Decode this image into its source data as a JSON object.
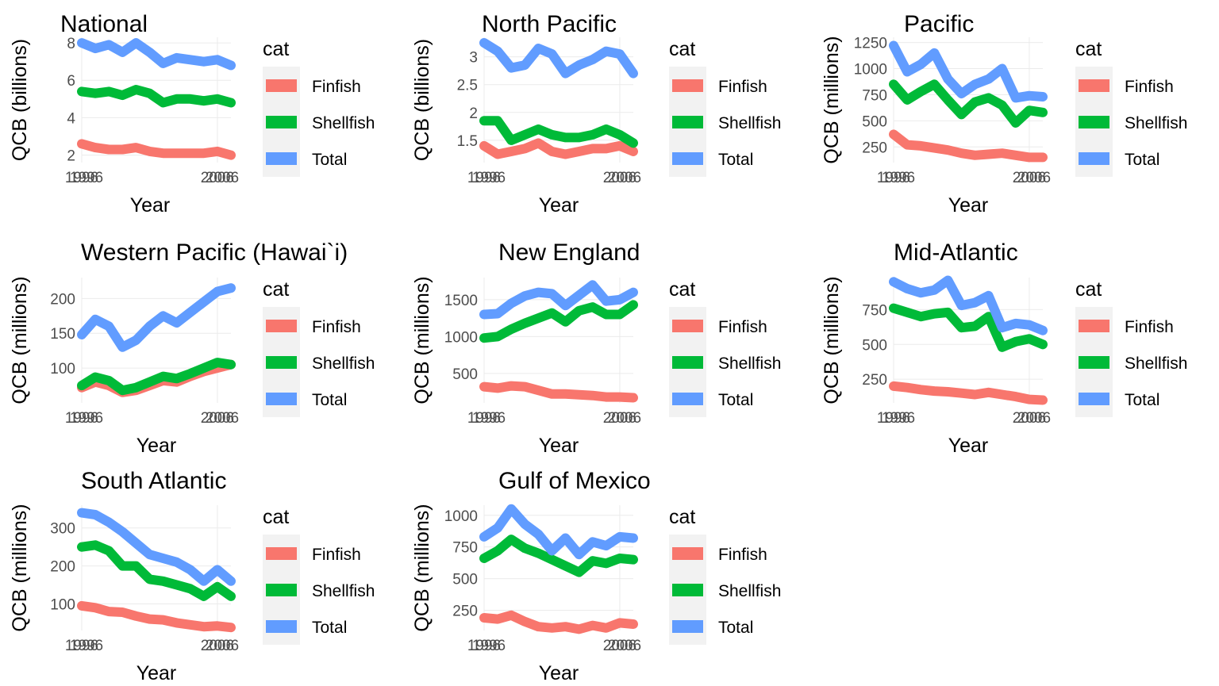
{
  "series_colors": {
    "Finfish": "#F8766D",
    "Shellfish": "#00BA38",
    "Total": "#619CFF"
  },
  "legend": {
    "title": "cat",
    "items": [
      "Finfish",
      "Shellfish",
      "Total"
    ]
  },
  "x_axis_label": "Year",
  "chart_data": [
    {
      "type": "line",
      "title": "National",
      "xlabel": "Year",
      "ylabel": "QCB (billions)",
      "x_ticks": [
        "1996",
        "2006"
      ],
      "y_ticks": [
        2,
        4,
        6,
        8
      ],
      "xlim": [
        1996,
        2007
      ],
      "ylim": [
        1.6,
        8.3
      ],
      "x": [
        1996,
        1997,
        1998,
        1999,
        2000,
        2001,
        2002,
        2003,
        2004,
        2005,
        2006,
        2007
      ],
      "series": [
        {
          "name": "Finfish",
          "values": [
            2.6,
            2.4,
            2.3,
            2.3,
            2.4,
            2.2,
            2.1,
            2.1,
            2.1,
            2.1,
            2.2,
            2.0
          ]
        },
        {
          "name": "Shellfish",
          "values": [
            5.4,
            5.3,
            5.4,
            5.2,
            5.5,
            5.3,
            4.8,
            5.0,
            5.0,
            4.9,
            5.0,
            4.8
          ]
        },
        {
          "name": "Total",
          "values": [
            8.0,
            7.7,
            7.9,
            7.5,
            8.0,
            7.5,
            6.9,
            7.2,
            7.1,
            7.0,
            7.1,
            6.8
          ]
        }
      ]
    },
    {
      "type": "line",
      "title": "North Pacific",
      "xlabel": "Year",
      "ylabel": "QCB (billions)",
      "x_ticks": [
        "1996",
        "2006"
      ],
      "y_ticks": [
        1.5,
        2.0,
        2.5,
        3.0
      ],
      "xlim": [
        1996,
        2007
      ],
      "ylim": [
        1.1,
        3.35
      ],
      "x": [
        1996,
        1997,
        1998,
        1999,
        2000,
        2001,
        2002,
        2003,
        2004,
        2005,
        2006,
        2007
      ],
      "series": [
        {
          "name": "Finfish",
          "values": [
            1.4,
            1.25,
            1.3,
            1.35,
            1.45,
            1.3,
            1.25,
            1.3,
            1.35,
            1.35,
            1.4,
            1.3
          ]
        },
        {
          "name": "Shellfish",
          "values": [
            1.85,
            1.85,
            1.5,
            1.6,
            1.7,
            1.6,
            1.55,
            1.55,
            1.6,
            1.7,
            1.6,
            1.45
          ]
        },
        {
          "name": "Total",
          "values": [
            3.25,
            3.1,
            2.8,
            2.85,
            3.15,
            3.05,
            2.7,
            2.85,
            2.95,
            3.1,
            3.05,
            2.7
          ]
        }
      ]
    },
    {
      "type": "line",
      "title": "Pacific",
      "xlabel": "Year",
      "ylabel": "QCB (millions)",
      "x_ticks": [
        "1996",
        "2006"
      ],
      "y_ticks": [
        250,
        500,
        750,
        1000,
        1250
      ],
      "xlim": [
        1996,
        2007
      ],
      "ylim": [
        100,
        1300
      ],
      "x": [
        1996,
        1997,
        1998,
        1999,
        2000,
        2001,
        2002,
        2003,
        2004,
        2005,
        2006,
        2007
      ],
      "series": [
        {
          "name": "Finfish",
          "values": [
            370,
            270,
            260,
            240,
            220,
            190,
            170,
            180,
            190,
            170,
            150,
            150
          ]
        },
        {
          "name": "Shellfish",
          "values": [
            850,
            700,
            780,
            850,
            700,
            560,
            680,
            720,
            650,
            480,
            600,
            580
          ]
        },
        {
          "name": "Total",
          "values": [
            1220,
            970,
            1040,
            1150,
            900,
            760,
            850,
            900,
            1000,
            720,
            740,
            730
          ]
        }
      ]
    },
    {
      "type": "line",
      "title": "Western Pacific (Hawai`i)",
      "xlabel": "Year",
      "ylabel": "QCB (millions)",
      "x_ticks": [
        "1996",
        "2006"
      ],
      "y_ticks": [
        100,
        150,
        200
      ],
      "xlim": [
        1996,
        2007
      ],
      "ylim": [
        50,
        230
      ],
      "x": [
        1996,
        1997,
        1998,
        1999,
        2000,
        2001,
        2002,
        2003,
        2004,
        2005,
        2006,
        2007
      ],
      "series": [
        {
          "name": "Finfish",
          "values": [
            72,
            80,
            75,
            65,
            68,
            75,
            82,
            80,
            88,
            95,
            100,
            105
          ]
        },
        {
          "name": "Shellfish",
          "values": [
            75,
            87,
            82,
            68,
            72,
            80,
            88,
            85,
            92,
            100,
            108,
            105
          ]
        },
        {
          "name": "Total",
          "values": [
            148,
            170,
            160,
            130,
            140,
            160,
            175,
            165,
            180,
            195,
            210,
            215
          ]
        }
      ]
    },
    {
      "type": "line",
      "title": "New England",
      "xlabel": "Year",
      "ylabel": "QCB (millions)",
      "x_ticks": [
        "1996",
        "2006"
      ],
      "y_ticks": [
        500,
        1000,
        1500
      ],
      "xlim": [
        1996,
        2007
      ],
      "ylim": [
        100,
        1800
      ],
      "x": [
        1996,
        1997,
        1998,
        1999,
        2000,
        2001,
        2002,
        2003,
        2004,
        2005,
        2006,
        2007
      ],
      "series": [
        {
          "name": "Finfish",
          "values": [
            320,
            300,
            330,
            320,
            270,
            220,
            220,
            210,
            200,
            180,
            180,
            170
          ]
        },
        {
          "name": "Shellfish",
          "values": [
            980,
            1000,
            1100,
            1180,
            1250,
            1320,
            1200,
            1350,
            1400,
            1300,
            1300,
            1430
          ]
        },
        {
          "name": "Total",
          "values": [
            1300,
            1310,
            1450,
            1550,
            1600,
            1580,
            1420,
            1560,
            1700,
            1480,
            1500,
            1600
          ]
        }
      ]
    },
    {
      "type": "line",
      "title": "Mid-Atlantic",
      "xlabel": "Year",
      "ylabel": "QCB (millions)",
      "x_ticks": [
        "1996",
        "2006"
      ],
      "y_ticks": [
        250,
        500,
        750
      ],
      "xlim": [
        1996,
        2007
      ],
      "ylim": [
        80,
        980
      ],
      "x": [
        1996,
        1997,
        1998,
        1999,
        2000,
        2001,
        2002,
        2003,
        2004,
        2005,
        2006,
        2007
      ],
      "series": [
        {
          "name": "Finfish",
          "values": [
            200,
            190,
            175,
            165,
            160,
            150,
            140,
            155,
            140,
            125,
            105,
            100
          ]
        },
        {
          "name": "Shellfish",
          "values": [
            760,
            730,
            700,
            720,
            730,
            620,
            630,
            700,
            480,
            520,
            540,
            500
          ]
        },
        {
          "name": "Total",
          "values": [
            950,
            900,
            870,
            890,
            960,
            780,
            800,
            850,
            620,
            650,
            640,
            600
          ]
        }
      ]
    },
    {
      "type": "line",
      "title": "South Atlantic",
      "xlabel": "Year",
      "ylabel": "QCB (millions)",
      "x_ticks": [
        "1996",
        "2006"
      ],
      "y_ticks": [
        100,
        200,
        300
      ],
      "xlim": [
        1996,
        2007
      ],
      "ylim": [
        30,
        360
      ],
      "x": [
        1996,
        1997,
        1998,
        1999,
        2000,
        2001,
        2002,
        2003,
        2004,
        2005,
        2006,
        2007
      ],
      "series": [
        {
          "name": "Finfish",
          "values": [
            95,
            90,
            80,
            78,
            68,
            60,
            58,
            50,
            45,
            40,
            42,
            38
          ]
        },
        {
          "name": "Shellfish",
          "values": [
            250,
            255,
            240,
            200,
            200,
            165,
            160,
            150,
            140,
            120,
            145,
            120
          ]
        },
        {
          "name": "Total",
          "values": [
            340,
            335,
            315,
            290,
            260,
            230,
            220,
            210,
            190,
            160,
            190,
            160
          ]
        }
      ]
    },
    {
      "type": "line",
      "title": "Gulf of Mexico",
      "xlabel": "Year",
      "ylabel": "QCB (millions)",
      "x_ticks": [
        "1996",
        "2006"
      ],
      "y_ticks": [
        250,
        500,
        750,
        1000
      ],
      "xlim": [
        1996,
        2007
      ],
      "ylim": [
        90,
        1080
      ],
      "x": [
        1996,
        1997,
        1998,
        1999,
        2000,
        2001,
        2002,
        2003,
        2004,
        2005,
        2006,
        2007
      ],
      "series": [
        {
          "name": "Finfish",
          "values": [
            190,
            180,
            210,
            160,
            120,
            110,
            120,
            100,
            130,
            110,
            150,
            140
          ]
        },
        {
          "name": "Shellfish",
          "values": [
            660,
            720,
            810,
            740,
            700,
            650,
            600,
            550,
            640,
            620,
            660,
            650
          ]
        },
        {
          "name": "Total",
          "values": [
            830,
            900,
            1050,
            930,
            850,
            720,
            820,
            690,
            790,
            760,
            830,
            820
          ]
        }
      ]
    }
  ]
}
